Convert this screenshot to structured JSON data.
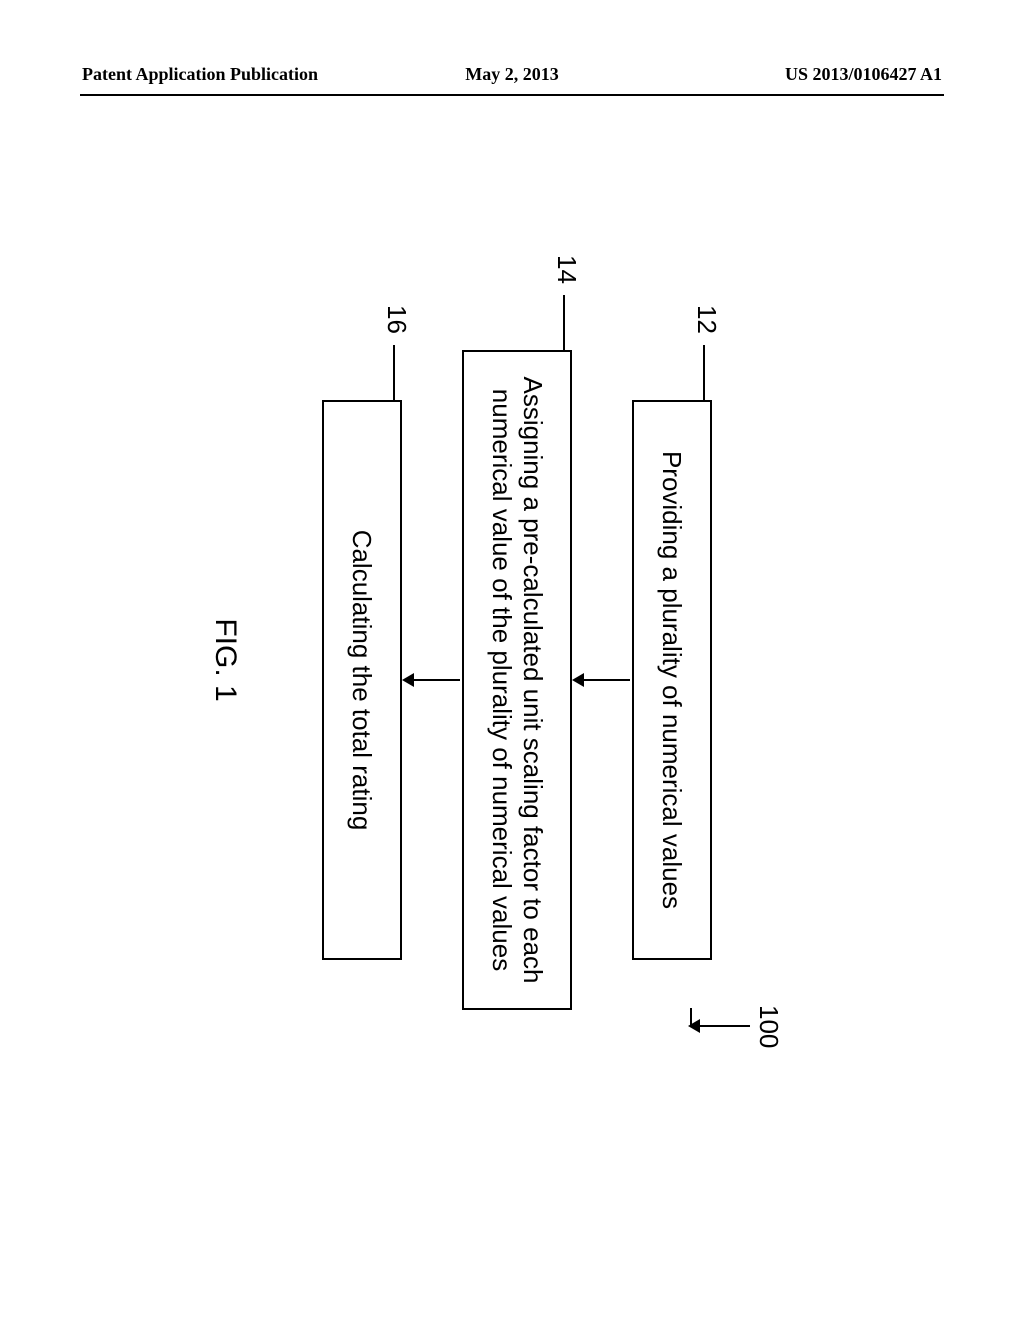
{
  "header": {
    "left": "Patent Application Publication",
    "mid": "May 2, 2013",
    "right": "US 2013/0106427 A1"
  },
  "flowchart": {
    "type": "flowchart",
    "ref_overall": "100",
    "figure_label": "FIG. 1",
    "background_color": "#ffffff",
    "border_color": "#000000",
    "font_family": "Arial",
    "box_fontsize": 26,
    "ref_fontsize": 26,
    "fig_fontsize": 30,
    "boxes": [
      {
        "ref": "12",
        "text": "Providing a plurality of numerical values"
      },
      {
        "ref": "14",
        "text": "Assigning a pre-calculated unit scaling factor to each numerical value of the plurality of numerical values"
      },
      {
        "ref": "16",
        "text": "Calculating the total rating"
      }
    ],
    "edges": [
      {
        "from": "12",
        "to": "14"
      },
      {
        "from": "14",
        "to": "16"
      }
    ]
  }
}
